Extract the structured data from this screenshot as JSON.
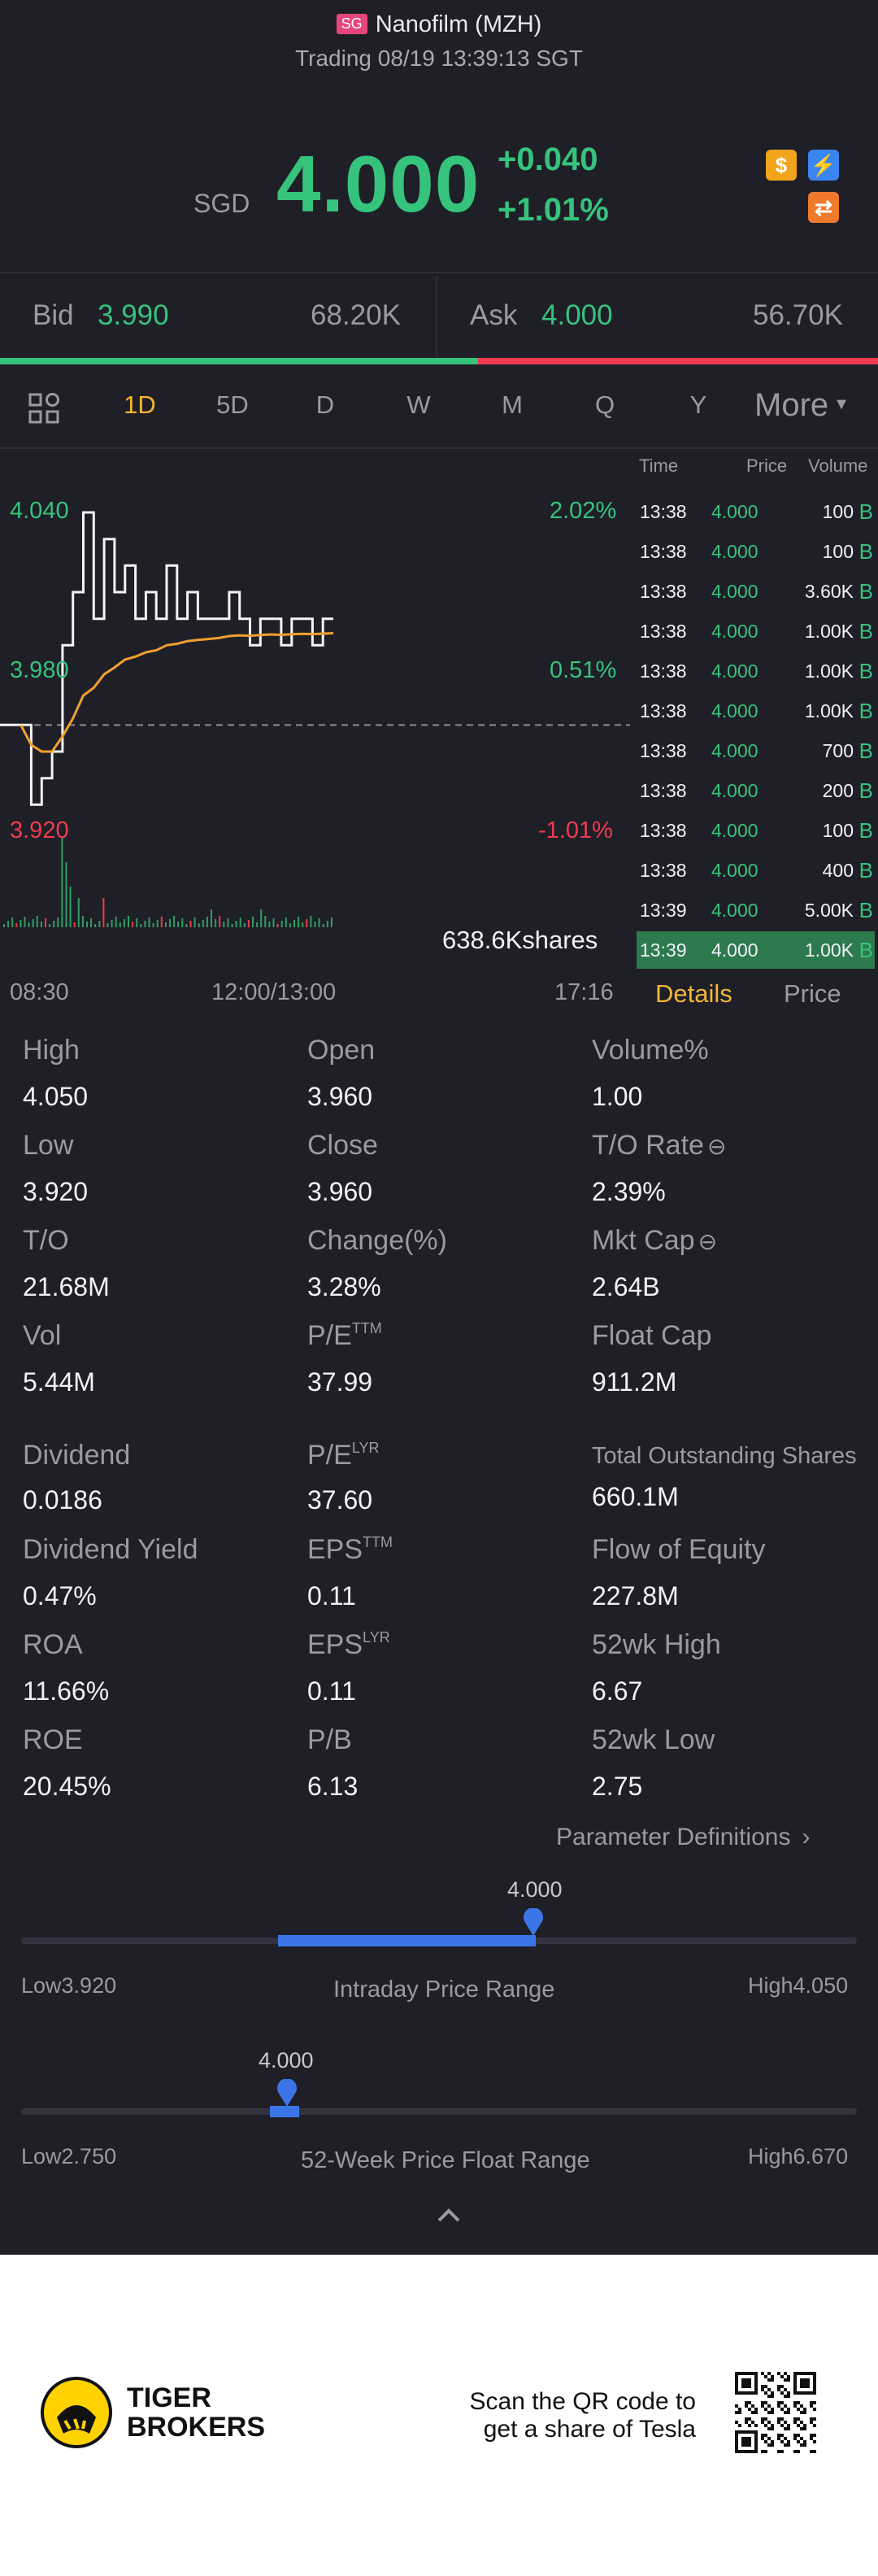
{
  "header": {
    "market_tag": "SG",
    "name": "Nanofilm (MZH)",
    "status": "Trading 08/19 13:39:13 SGT"
  },
  "quote": {
    "currency": "SGD",
    "price": "4.000",
    "change": "+0.040",
    "change_pct": "+1.01%",
    "badges": [
      "dollar-icon",
      "lightning-icon",
      "swap-icon"
    ]
  },
  "bidask": {
    "bid_label": "Bid",
    "bid_price": "3.990",
    "bid_size": "68.20K",
    "ask_label": "Ask",
    "ask_price": "4.000",
    "ask_size": "56.70K"
  },
  "tabs": [
    "1D",
    "5D",
    "D",
    "W",
    "M",
    "Q",
    "Y"
  ],
  "active_tab": "1D",
  "more_label": "More",
  "chart": {
    "top_price": "4.040",
    "top_pct": "2.02%",
    "mid_price": "3.980",
    "mid_pct": "0.51%",
    "bot_price": "3.920",
    "bot_pct": "-1.01%",
    "volume_label": "638.6Kshares",
    "time_start": "08:30",
    "time_mid": "12:00/13:00",
    "time_end": "17:16"
  },
  "chart_data": {
    "type": "line",
    "series": [
      {
        "values": [
          3.96,
          3.96,
          3.96,
          3.93,
          3.94,
          3.95,
          3.99,
          4.01,
          4.04,
          4.0,
          4.03,
          4.01,
          4.02,
          4.0,
          4.01,
          4.0,
          4.02,
          4.0,
          4.01,
          4.0,
          4.0,
          4.0,
          4.01,
          4.0,
          3.99,
          4.0,
          4.0,
          3.99,
          4.0,
          4.0,
          3.99,
          4.0,
          4.0
        ]
      }
    ],
    "ylim": [
      3.92,
      4.04
    ]
  },
  "trades": {
    "headers": [
      "Time",
      "Price",
      "Volume"
    ],
    "rows": [
      {
        "time": "13:38",
        "price": "4.000",
        "vol": "100"
      },
      {
        "time": "13:38",
        "price": "4.000",
        "vol": "100"
      },
      {
        "time": "13:38",
        "price": "4.000",
        "vol": "3.60K"
      },
      {
        "time": "13:38",
        "price": "4.000",
        "vol": "1.00K"
      },
      {
        "time": "13:38",
        "price": "4.000",
        "vol": "1.00K"
      },
      {
        "time": "13:38",
        "price": "4.000",
        "vol": "1.00K"
      },
      {
        "time": "13:38",
        "price": "4.000",
        "vol": "700"
      },
      {
        "time": "13:38",
        "price": "4.000",
        "vol": "200"
      },
      {
        "time": "13:38",
        "price": "4.000",
        "vol": "100"
      },
      {
        "time": "13:38",
        "price": "4.000",
        "vol": "400"
      },
      {
        "time": "13:39",
        "price": "4.000",
        "vol": "5.00K"
      },
      {
        "time": "13:39",
        "price": "4.000",
        "vol": "1.00K"
      }
    ],
    "flag": "B",
    "tab_details": "Details",
    "tab_price": "Price"
  },
  "stats": {
    "high": {
      "label": "High",
      "value": "4.050"
    },
    "open": {
      "label": "Open",
      "value": "3.960"
    },
    "volpct": {
      "label": "Volume%",
      "value": "1.00"
    },
    "low": {
      "label": "Low",
      "value": "3.920"
    },
    "close": {
      "label": "Close",
      "value": "3.960"
    },
    "torate": {
      "label": "T/O Rate",
      "value": "2.39%"
    },
    "to": {
      "label": "T/O",
      "value": "21.68M"
    },
    "changepct": {
      "label": "Change(%)",
      "value": "3.28%"
    },
    "mktcap": {
      "label": "Mkt Cap",
      "value": "2.64B"
    },
    "vol": {
      "label": "Vol",
      "value": "5.44M"
    },
    "pe_ttm": {
      "label": "P/E",
      "sup": "TTM",
      "value": "37.99"
    },
    "floatcap": {
      "label": "Float Cap",
      "value": "911.2M"
    },
    "dividend": {
      "label": "Dividend",
      "value": "0.0186"
    },
    "pe_lyr": {
      "label": "P/E",
      "sup": "LYR",
      "value": "37.60"
    },
    "tos": {
      "label": "Total Outstanding Shares",
      "value": "660.1M"
    },
    "divyield": {
      "label": "Dividend Yield",
      "value": "0.47%"
    },
    "eps_ttm": {
      "label": "EPS",
      "sup": "TTM",
      "value": "0.11"
    },
    "flow": {
      "label": "Flow of Equity",
      "value": "227.8M"
    },
    "roa": {
      "label": "ROA",
      "value": "11.66%"
    },
    "eps_lyr": {
      "label": "EPS",
      "sup": "LYR",
      "value": "0.11"
    },
    "wk52h": {
      "label": "52wk High",
      "value": "6.67"
    },
    "roe": {
      "label": "ROE",
      "value": "20.45%"
    },
    "pb": {
      "label": "P/B",
      "value": "6.13"
    },
    "wk52l": {
      "label": "52wk Low",
      "value": "2.75"
    }
  },
  "param_link": "Parameter Definitions",
  "intraday": {
    "marker": "4.000",
    "low_label": "Low",
    "low": "3.920",
    "title": "Intraday Price Range",
    "high_label": "High",
    "high": "4.050"
  },
  "week52": {
    "marker": "4.000",
    "low_label": "Low",
    "low": "2.750",
    "title": "52-Week Price Float Range",
    "high_label": "High",
    "high": "6.670"
  },
  "footer": {
    "brand_line1": "TIGER",
    "brand_line2": "BROKERS",
    "qr_line1": "Scan the QR code to",
    "qr_line2": "get a share of Tesla"
  },
  "colors": {
    "up": "#36c37c",
    "down": "#ef3b4d",
    "accent": "#f2b632",
    "range": "#3c75e8"
  }
}
